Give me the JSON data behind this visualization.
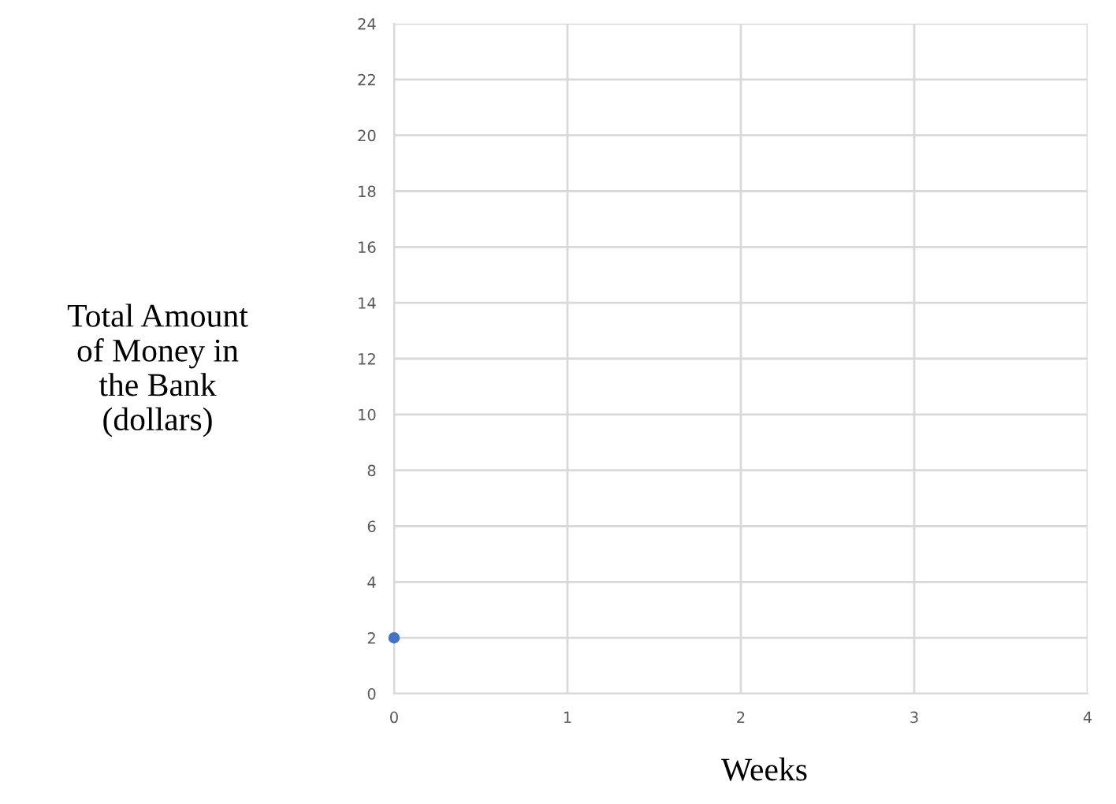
{
  "chart_data": {
    "type": "scatter",
    "xlabel": "Weeks",
    "ylabel": "Total Amount\nof Money in\nthe Bank\n(dollars)",
    "x": [
      0
    ],
    "series": [
      {
        "color": "#4472c4",
        "values": [
          2
        ]
      }
    ],
    "xlim": [
      0,
      4
    ],
    "ylim": [
      0,
      24
    ],
    "xticks": [
      0,
      1,
      2,
      3,
      4
    ],
    "yticks": [
      0,
      2,
      4,
      6,
      8,
      10,
      12,
      14,
      16,
      18,
      20,
      22,
      24
    ],
    "grid": true,
    "marker": "circle"
  }
}
